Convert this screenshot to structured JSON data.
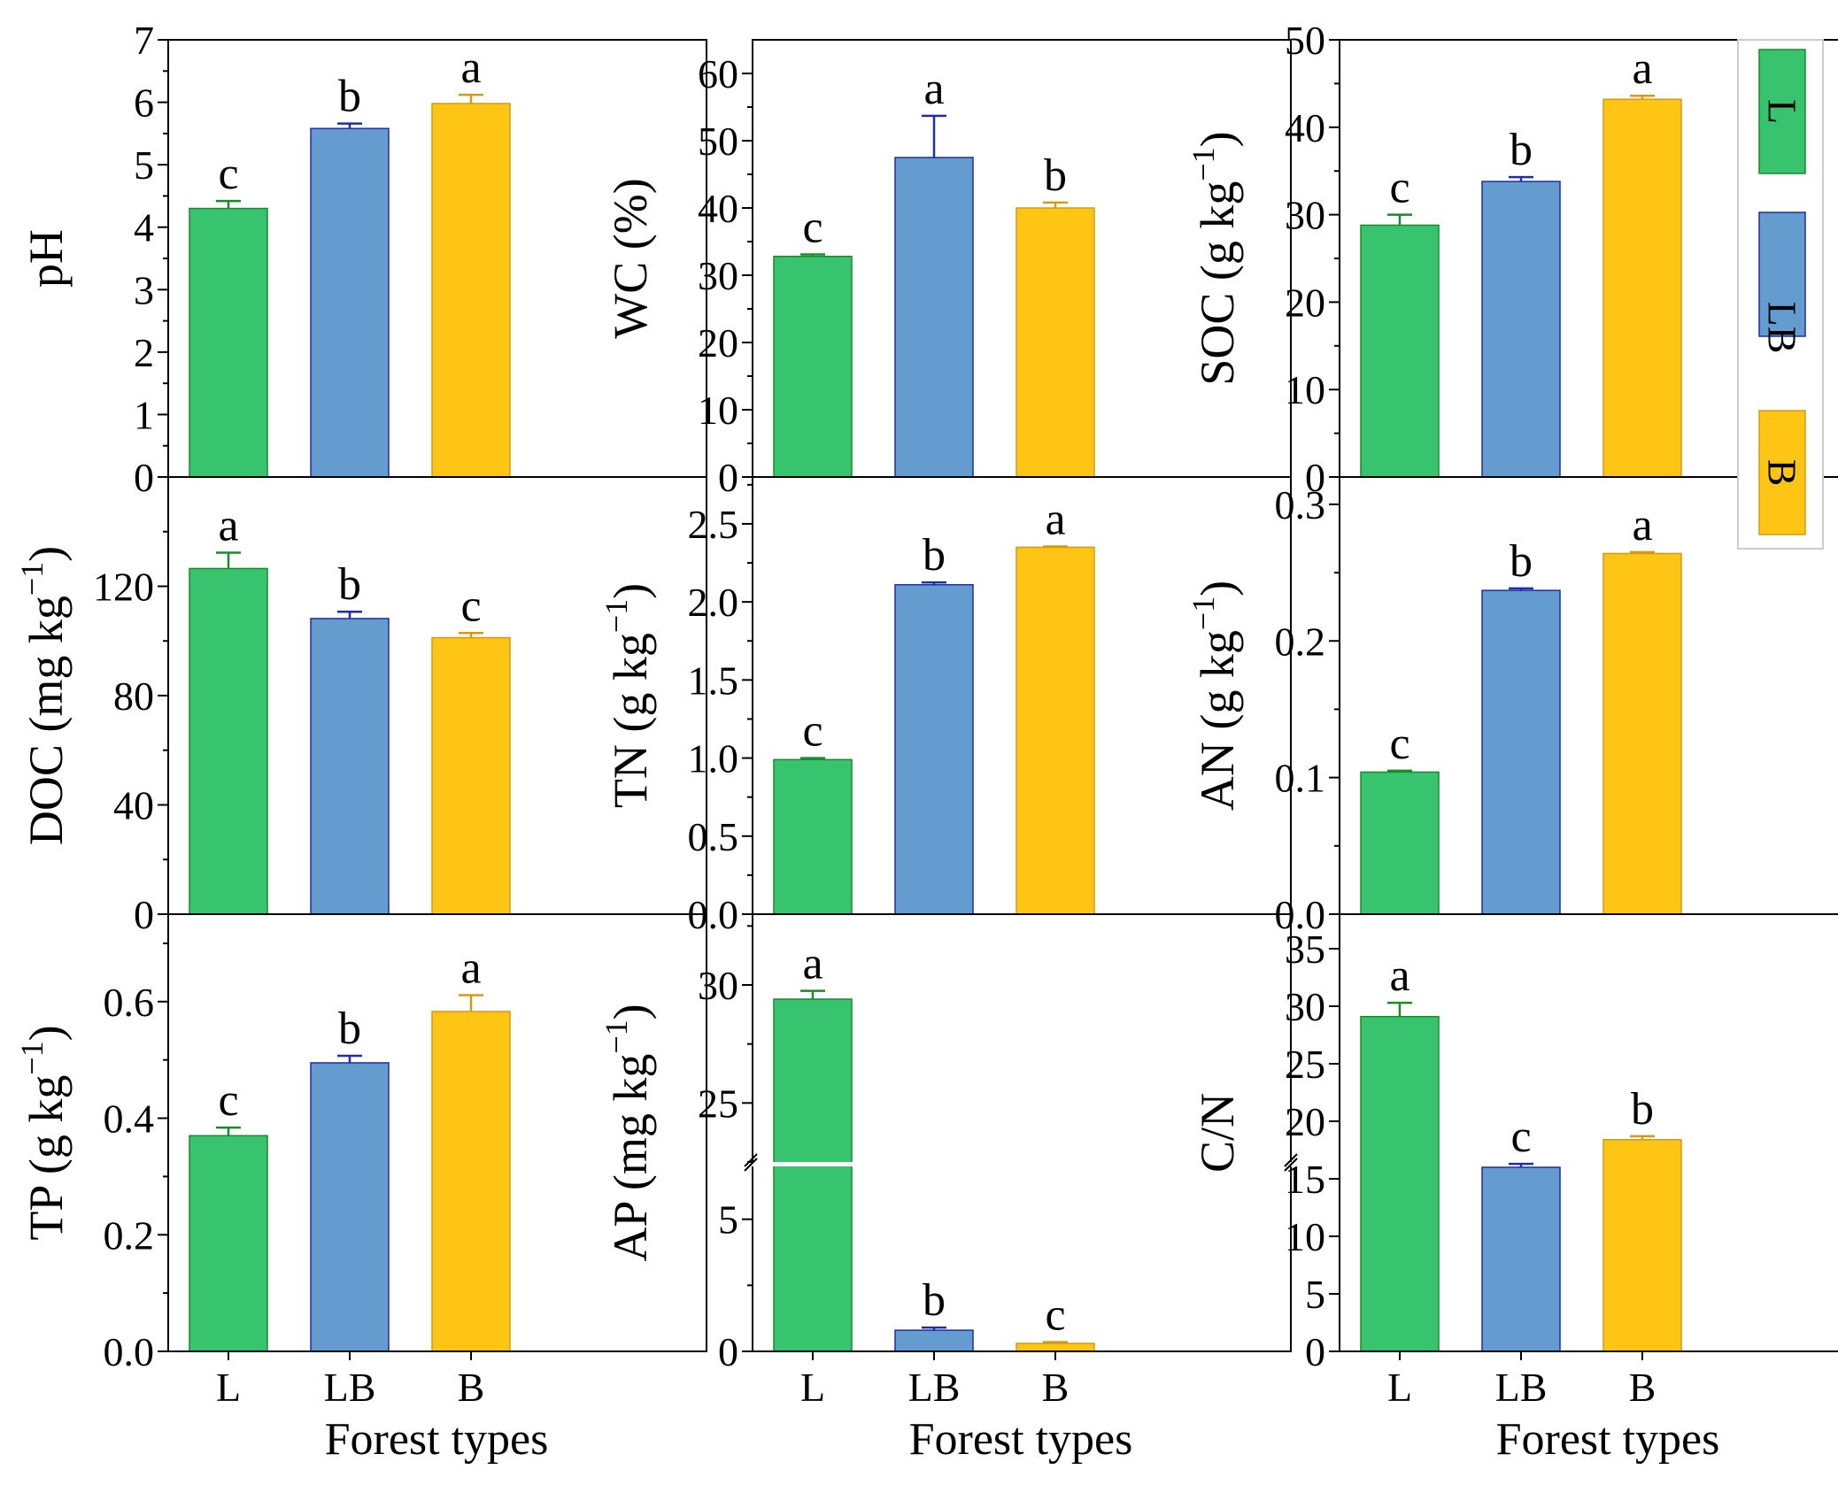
{
  "colors": {
    "L": {
      "fill": "#38c46e",
      "stroke": "#1a8a2a"
    },
    "LB": {
      "fill": "#649ccf",
      "stroke": "#1d2fa2"
    },
    "B": {
      "fill": "#fec515",
      "stroke": "#d59a10"
    }
  },
  "legend": {
    "items": [
      {
        "key": "L",
        "label": "L"
      },
      {
        "key": "LB",
        "label": "LB"
      },
      {
        "key": "B",
        "label": "B"
      }
    ]
  },
  "chart_data": [
    {
      "id": "ph",
      "type": "bar",
      "ylabel": "pH",
      "ylabel_sup": "",
      "ylabel_tail": "",
      "ylim": [
        0,
        7
      ],
      "yticks": [
        "0",
        "1",
        "2",
        "3",
        "4",
        "5",
        "6",
        "7"
      ],
      "minor": true,
      "categories": [
        "L",
        "LB",
        "B"
      ],
      "values": [
        4.3,
        5.58,
        5.98
      ],
      "errors": [
        0.12,
        0.08,
        0.14
      ],
      "letters": [
        "c",
        "b",
        "a"
      ],
      "show_xticks": false,
      "xlabel": ""
    },
    {
      "id": "wc",
      "type": "bar",
      "ylabel": "WC (%)",
      "ylabel_sup": "",
      "ylabel_tail": "",
      "ylim": [
        0,
        65
      ],
      "yticks": [
        "0",
        "10",
        "20",
        "30",
        "40",
        "50",
        "60"
      ],
      "minor": true,
      "categories": [
        "L",
        "LB",
        "B"
      ],
      "values": [
        32.8,
        47.5,
        40
      ],
      "errors": [
        0.3,
        6.2,
        0.8
      ],
      "letters": [
        "c",
        "a",
        "b"
      ],
      "show_xticks": false,
      "xlabel": ""
    },
    {
      "id": "soc",
      "type": "bar",
      "ylabel": "SOC (g kg",
      "ylabel_sup": "−1",
      "ylabel_tail": ")",
      "ylim": [
        0,
        50
      ],
      "yticks": [
        "0",
        "10",
        "20",
        "30",
        "40",
        "50"
      ],
      "minor": true,
      "categories": [
        "L",
        "LB",
        "B"
      ],
      "values": [
        28.8,
        33.8,
        43.2
      ],
      "errors": [
        1.2,
        0.5,
        0.4
      ],
      "letters": [
        "c",
        "b",
        "a"
      ],
      "show_xticks": false,
      "xlabel": ""
    },
    {
      "id": "doc",
      "type": "bar",
      "ylabel": "DOC (mg kg",
      "ylabel_sup": "−1",
      "ylabel_tail": ")",
      "ylim": [
        0,
        160
      ],
      "yticks": [
        "0",
        "40",
        "80",
        "120"
      ],
      "minor": true,
      "categories": [
        "L",
        "LB",
        "B"
      ],
      "values": [
        126.5,
        108.2,
        101.2
      ],
      "errors": [
        5.8,
        2.5,
        1.7
      ],
      "letters": [
        "a",
        "b",
        "c"
      ],
      "show_xticks": false,
      "xlabel": ""
    },
    {
      "id": "tn",
      "type": "bar",
      "ylabel": "TN (g kg",
      "ylabel_sup": "−1",
      "ylabel_tail": ")",
      "ylim": [
        0,
        2.8
      ],
      "yticks": [
        "0.0",
        "0.5",
        "1.0",
        "1.5",
        "2.0",
        "2.5"
      ],
      "minor": true,
      "categories": [
        "L",
        "LB",
        "B"
      ],
      "values": [
        0.99,
        2.11,
        2.35
      ],
      "errors": [
        0.01,
        0.015,
        0.005
      ],
      "letters": [
        "c",
        "b",
        "a"
      ],
      "show_xticks": false,
      "xlabel": ""
    },
    {
      "id": "an",
      "type": "bar",
      "ylabel": "AN (g kg",
      "ylabel_sup": "−1",
      "ylabel_tail": ")",
      "ylim": [
        0,
        0.32
      ],
      "yticks": [
        "0.0",
        "0.1",
        "0.2",
        "0.3"
      ],
      "minor": true,
      "categories": [
        "L",
        "LB",
        "B"
      ],
      "values": [
        0.104,
        0.237,
        0.264
      ],
      "errors": [
        0.001,
        0.0015,
        0.001
      ],
      "letters": [
        "c",
        "b",
        "a"
      ],
      "show_xticks": false,
      "xlabel": ""
    },
    {
      "id": "tp",
      "type": "bar",
      "ylabel": "TP (g kg",
      "ylabel_sup": "−1",
      "ylabel_tail": ")",
      "ylim": [
        0,
        0.75
      ],
      "yticks": [
        "0.0",
        "0.2",
        "0.4",
        "0.6"
      ],
      "minor": true,
      "categories": [
        "L",
        "LB",
        "B"
      ],
      "values": [
        0.37,
        0.495,
        0.583
      ],
      "errors": [
        0.014,
        0.012,
        0.028
      ],
      "letters": [
        "c",
        "b",
        "a"
      ],
      "show_xticks": true,
      "xlabel": "Forest types"
    },
    {
      "id": "ap",
      "type": "bar",
      "broken_axis": true,
      "ylabel": "AP (mg kg",
      "ylabel_sup": "−1",
      "ylabel_tail": ")",
      "ylim_lower": [
        0,
        7
      ],
      "ylim_upper": [
        22.5,
        33
      ],
      "yticks_lower": [
        "0",
        "5"
      ],
      "yticks_upper": [
        "25",
        "30"
      ],
      "minor": true,
      "categories": [
        "L",
        "LB",
        "B"
      ],
      "values": [
        29.4,
        0.8,
        0.3
      ],
      "errors": [
        0.35,
        0.1,
        0.05
      ],
      "letters": [
        "a",
        "b",
        "c"
      ],
      "show_xticks": true,
      "xlabel": "Forest types"
    },
    {
      "id": "cn",
      "type": "bar",
      "ylabel": "C/N",
      "ylabel_sup": "",
      "ylabel_tail": "",
      "ylim": [
        0,
        38
      ],
      "yticks": [
        "0",
        "5",
        "10",
        "15",
        "20",
        "25",
        "30",
        "35"
      ],
      "minor": false,
      "categories": [
        "L",
        "LB",
        "B"
      ],
      "values": [
        29.1,
        16,
        18.4
      ],
      "errors": [
        1.2,
        0.3,
        0.3
      ],
      "letters": [
        "a",
        "c",
        "b"
      ],
      "show_xticks": true,
      "xlabel": "Forest types"
    }
  ]
}
